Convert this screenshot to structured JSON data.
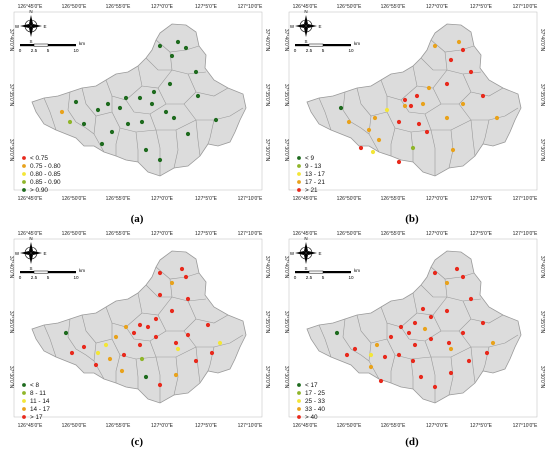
{
  "top_lon_labels": [
    "126°45'0\"E",
    "126°50'0\"E",
    "126°55'0\"E",
    "127°0'0\"E",
    "127°5'0\"E",
    "127°10'0\"E"
  ],
  "bottom_lon_labels": [
    "126°45'0\"E",
    "126°50'0\"E",
    "126°55'0\"E",
    "127°0'0\"E",
    "127°5'0\"E",
    "127°10'0\"E"
  ],
  "lat_labels": [
    "37°40'0\"N",
    "37°35'0\"N",
    "37°30'0\"N"
  ],
  "scale_bar": {
    "ticks": [
      "0",
      "2.5",
      "5",
      "10"
    ],
    "unit": "km"
  },
  "compass": {
    "letters": [
      "N",
      "E",
      "S",
      "W"
    ]
  },
  "colors": {
    "background": "#ffffff",
    "district_fill": "#dcdcdc",
    "district_border": "#9a9a9a",
    "class1": "#e8291c",
    "class2": "#e8a21c",
    "class3": "#f3e637",
    "class4": "#8fb52a",
    "class5": "#1e6b1e"
  },
  "panels": [
    {
      "label": "(a)",
      "legend": [
        {
          "text": "< 0.75",
          "color": "#e8291c"
        },
        {
          "text": "0.75 - 0.80",
          "color": "#e8a21c"
        },
        {
          "text": "0.80 - 0.85",
          "color": "#f3e637"
        },
        {
          "text": "0.85 - 0.90",
          "color": "#8fb52a"
        },
        {
          "text": "> 0.90",
          "color": "#1e6b1e"
        }
      ]
    },
    {
      "label": "(b)",
      "legend": [
        {
          "text": "< 9",
          "color": "#1e6b1e"
        },
        {
          "text": "9 - 13",
          "color": "#8fb52a"
        },
        {
          "text": "13 - 17",
          "color": "#f3e637"
        },
        {
          "text": "17 - 21",
          "color": "#e8a21c"
        },
        {
          "text": "> 21",
          "color": "#e8291c"
        }
      ]
    },
    {
      "label": "(c)",
      "legend": [
        {
          "text": "< 8",
          "color": "#1e6b1e"
        },
        {
          "text": "8 - 11",
          "color": "#8fb52a"
        },
        {
          "text": "11 - 14",
          "color": "#f3e637"
        },
        {
          "text": "14 - 17",
          "color": "#e8a21c"
        },
        {
          "text": "> 17",
          "color": "#e8291c"
        }
      ]
    },
    {
      "label": "(d)",
      "legend": [
        {
          "text": "< 17",
          "color": "#1e6b1e"
        },
        {
          "text": "17 - 25",
          "color": "#8fb52a"
        },
        {
          "text": "25 - 33",
          "color": "#f3e637"
        },
        {
          "text": "33 - 40",
          "color": "#e8a21c"
        },
        {
          "text": "> 40",
          "color": "#e8291c"
        }
      ]
    }
  ]
}
